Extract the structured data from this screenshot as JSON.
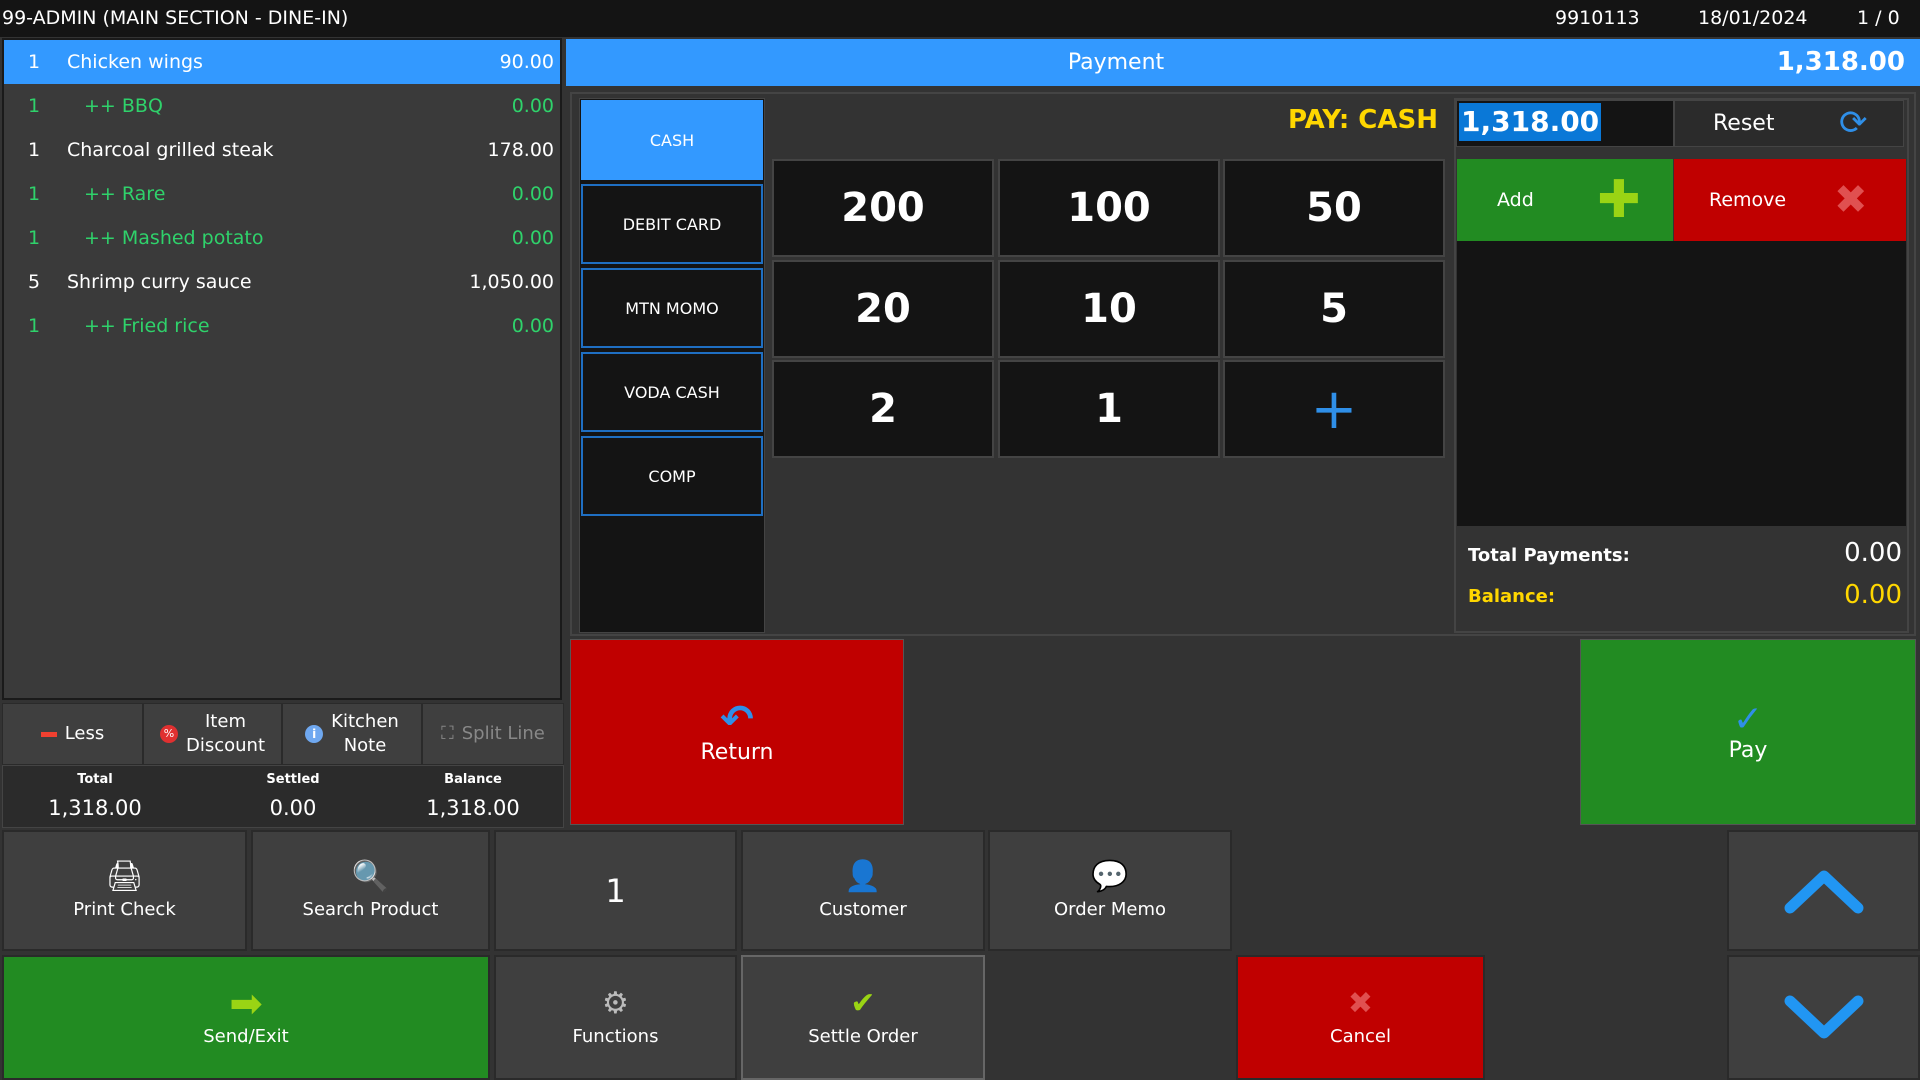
{
  "titlebar": {
    "title": "99-ADMIN (MAIN SECTION - DINE-IN)",
    "check_no": "9910113",
    "date": "18/01/2024",
    "counter": "1 / 0"
  },
  "order": {
    "items": [
      {
        "qty": "1",
        "name": "Chicken wings",
        "price": "90.00",
        "modifier": false,
        "selected": true
      },
      {
        "qty": "1",
        "name": "++ BBQ",
        "price": "0.00",
        "modifier": true
      },
      {
        "qty": "1",
        "name": "Charcoal grilled steak",
        "price": "178.00",
        "modifier": false
      },
      {
        "qty": "1",
        "name": "++ Rare",
        "price": "0.00",
        "modifier": true
      },
      {
        "qty": "1",
        "name": "++ Mashed potato",
        "price": "0.00",
        "modifier": true
      },
      {
        "qty": "5",
        "name": "Shrimp curry sauce",
        "price": "1,050.00",
        "modifier": false
      },
      {
        "qty": "1",
        "name": "++ Fried rice",
        "price": "0.00",
        "modifier": true
      }
    ]
  },
  "actions": {
    "less": "Less",
    "item_discount": [
      "Item",
      "Discount"
    ],
    "kitchen_note": [
      "Kitchen",
      "Note"
    ],
    "split_line": "Split Line"
  },
  "totals": {
    "total_label": "Total",
    "total": "1,318.00",
    "settled_label": "Settled",
    "settled": "0.00",
    "balance_label": "Balance",
    "balance": "1,318.00"
  },
  "payment": {
    "title": "Payment",
    "amount_due": "1,318.00",
    "pay_label": "PAY: CASH",
    "input_value": "1,318.00",
    "reset": "Reset",
    "add": "Add",
    "remove": "Remove",
    "methods": [
      "CASH",
      "DEBIT CARD",
      "MTN MOMO",
      "VODA CASH",
      "COMP"
    ],
    "selected_method": "CASH",
    "keys": [
      "200",
      "100",
      "50",
      "20",
      "10",
      "5",
      "2",
      "1"
    ],
    "total_payments_label": "Total Payments:",
    "total_payments": "0.00",
    "balance_label": "Balance:",
    "balance": "0.00",
    "return": "Return",
    "pay": "Pay"
  },
  "bottom": {
    "print_check": "Print Check",
    "search_product": "Search Product",
    "quantity": "1",
    "customer": "Customer",
    "order_memo": "Order Memo",
    "send_exit": "Send/Exit",
    "functions": "Functions",
    "settle_order": "Settle Order",
    "cancel": "Cancel"
  },
  "colors": {
    "accent": "#3399ff",
    "green": "#228b22",
    "red": "#c00000",
    "yellow": "#ffd700",
    "modifier": "#2fd26b"
  }
}
